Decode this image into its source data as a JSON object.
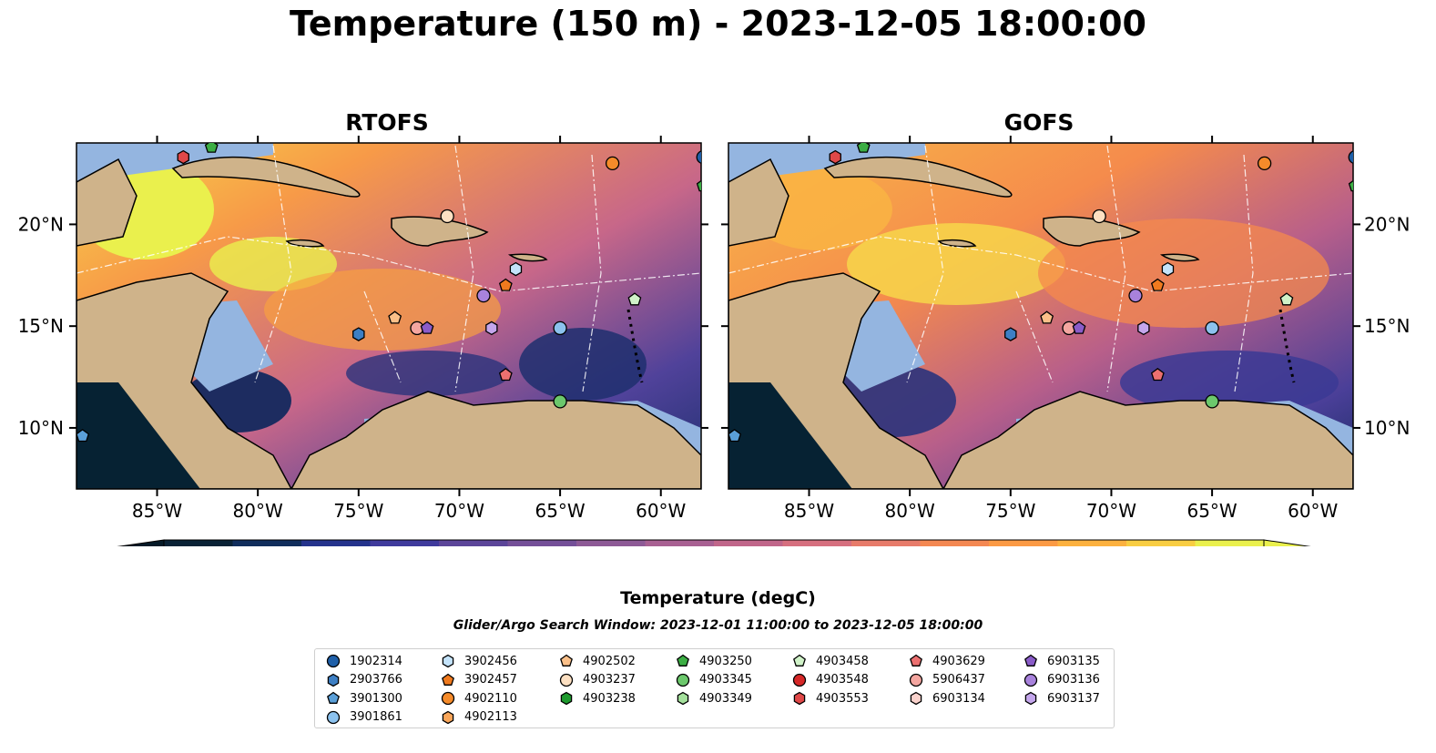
{
  "title": "Temperature (150 m) - 2023-12-05 18:00:00",
  "panels": [
    {
      "title": "RTOFS"
    },
    {
      "title": "GOFS"
    }
  ],
  "axes": {
    "lon_ticks": [
      "85°W",
      "80°W",
      "75°W",
      "70°W",
      "65°W",
      "60°W"
    ],
    "lat_ticks": [
      "20°N",
      "15°N",
      "10°N"
    ],
    "lon_range": [
      -89,
      -58
    ],
    "lat_range": [
      7,
      24
    ]
  },
  "colorbar": {
    "label": "Temperature (degC)",
    "ticks": [
      "17",
      "18",
      "19",
      "20",
      "21",
      "22",
      "23",
      "24"
    ],
    "range": [
      16.5,
      24.5
    ],
    "colors": [
      "#0a2236",
      "#102d5c",
      "#24338c",
      "#3f3a9c",
      "#5c4599",
      "#744f98",
      "#8d5a96",
      "#a86092",
      "#c0668a",
      "#d66f7f",
      "#e77b6a",
      "#f48852",
      "#fb9a44",
      "#fcb13f",
      "#f8cd42",
      "#eaf04d"
    ],
    "extend_low": "#051a28",
    "extend_high": "#eaf04d"
  },
  "search_window": "Glider/Argo Search Window: 2023-12-01 11:00:00 to 2023-12-05 18:00:00",
  "legend": {
    "columns": [
      [
        {
          "id": "1902314",
          "shape": "circle",
          "color": "#1f5fa8"
        },
        {
          "id": "2903766",
          "shape": "hexagon",
          "color": "#3d7fc4"
        },
        {
          "id": "3901300",
          "shape": "pentagon",
          "color": "#5a9fd8"
        },
        {
          "id": "3901861",
          "shape": "circle",
          "color": "#8cc2ee"
        }
      ],
      [
        {
          "id": "3902456",
          "shape": "hexagon",
          "color": "#c4e3fa"
        },
        {
          "id": "3902457",
          "shape": "pentagon",
          "color": "#f07a1e"
        },
        {
          "id": "4902110",
          "shape": "circle",
          "color": "#f58b2a"
        },
        {
          "id": "4902113",
          "shape": "hexagon",
          "color": "#f9a65a"
        }
      ],
      [
        {
          "id": "4902502",
          "shape": "pentagon",
          "color": "#fbc089"
        },
        {
          "id": "4903237",
          "shape": "circle",
          "color": "#fde0c2"
        },
        {
          "id": "4903238",
          "shape": "hexagon",
          "color": "#1e9a2e"
        }
      ],
      [
        {
          "id": "4903250",
          "shape": "pentagon",
          "color": "#3cae44"
        },
        {
          "id": "4903345",
          "shape": "circle",
          "color": "#6cc86c"
        },
        {
          "id": "4903349",
          "shape": "hexagon",
          "color": "#a4e09c"
        }
      ],
      [
        {
          "id": "4903458",
          "shape": "pentagon",
          "color": "#d0f2c8"
        },
        {
          "id": "4903548",
          "shape": "circle",
          "color": "#d62828"
        },
        {
          "id": "4903553",
          "shape": "hexagon",
          "color": "#e04848"
        }
      ],
      [
        {
          "id": "4903629",
          "shape": "pentagon",
          "color": "#ec7070"
        },
        {
          "id": "5906437",
          "shape": "circle",
          "color": "#f4a6a0"
        },
        {
          "id": "6903134",
          "shape": "hexagon",
          "color": "#fad2cc"
        }
      ],
      [
        {
          "id": "6903135",
          "shape": "pentagon",
          "color": "#8a5cc8"
        },
        {
          "id": "6903136",
          "shape": "circle",
          "color": "#a882dc"
        },
        {
          "id": "6903137",
          "shape": "hexagon",
          "color": "#c4a6ec"
        }
      ]
    ]
  },
  "float_markers": [
    {
      "id": "4903553",
      "lon": -83.7,
      "lat": 23.3
    },
    {
      "id": "4903250",
      "lon": -82.3,
      "lat": 23.8
    },
    {
      "id": "4902110",
      "lon": -62.4,
      "lat": 23.0
    },
    {
      "id": "1902314",
      "lon": -57.9,
      "lat": 23.3
    },
    {
      "id": "4903250",
      "lon": -57.9,
      "lat": 21.9
    },
    {
      "id": "4903237",
      "lon": -70.6,
      "lat": 20.4
    },
    {
      "id": "3902456",
      "lon": -67.2,
      "lat": 17.8
    },
    {
      "id": "3902457",
      "lon": -67.7,
      "lat": 17.0
    },
    {
      "id": "6903136",
      "lon": -68.8,
      "lat": 16.5
    },
    {
      "id": "4903458",
      "lon": -61.3,
      "lat": 16.3
    },
    {
      "id": "4902502",
      "lon": -73.2,
      "lat": 15.4
    },
    {
      "id": "5906437",
      "lon": -72.1,
      "lat": 14.9
    },
    {
      "id": "6903135",
      "lon": -71.6,
      "lat": 14.9
    },
    {
      "id": "6903137",
      "lon": -68.4,
      "lat": 14.9
    },
    {
      "id": "3901861",
      "lon": -65.0,
      "lat": 14.9
    },
    {
      "id": "2903766",
      "lon": -75.0,
      "lat": 14.6
    },
    {
      "id": "4903629",
      "lon": -67.7,
      "lat": 12.6
    },
    {
      "id": "4903345",
      "lon": -65.0,
      "lat": 11.3
    },
    {
      "id": "3901300",
      "lon": -88.7,
      "lat": 9.6
    }
  ],
  "gofs_markers_note": ""
}
